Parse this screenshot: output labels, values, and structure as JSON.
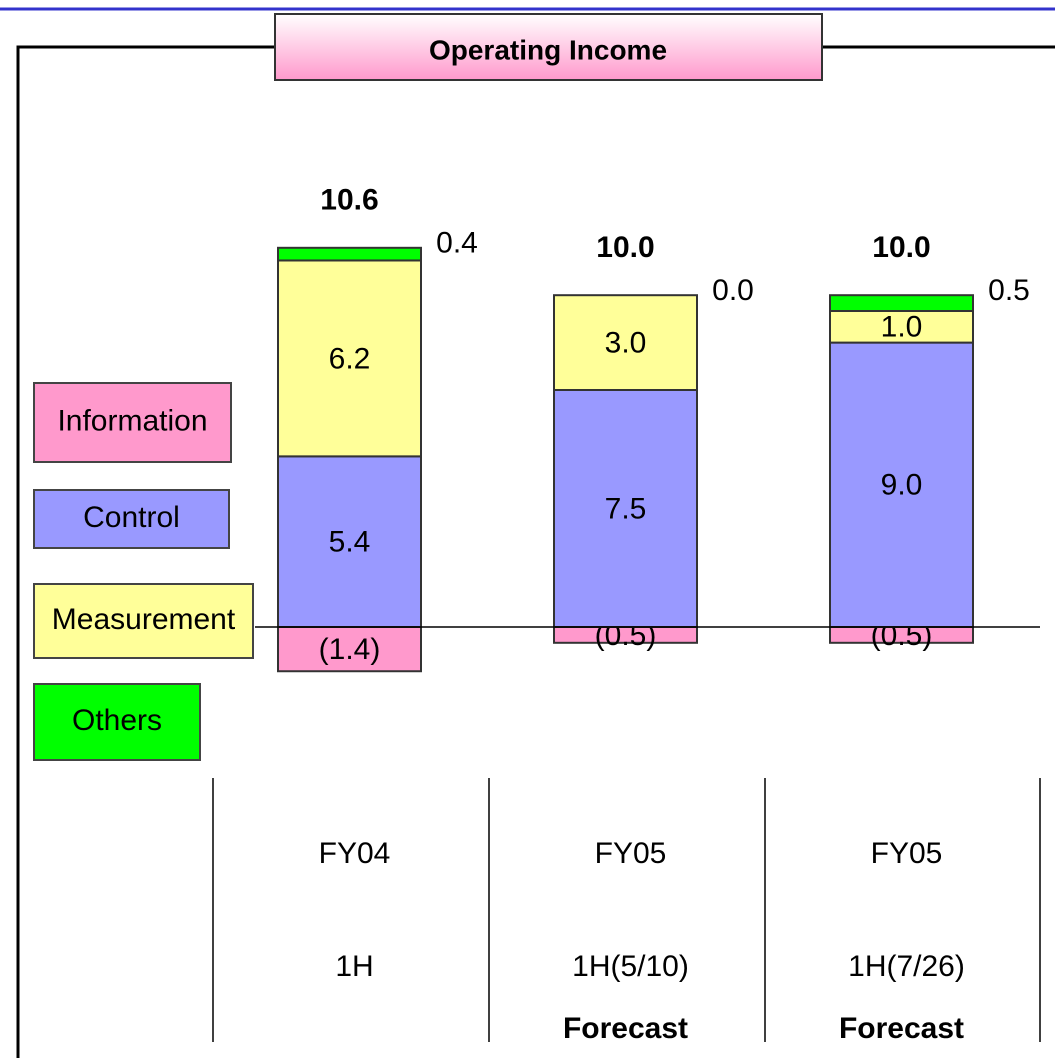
{
  "chart_data": {
    "type": "stacked_bar",
    "title": "Operating Income",
    "categories": [
      [
        "FY04",
        "1H"
      ],
      [
        "FY05",
        "1H(5/10)"
      ],
      [
        "FY05",
        "1H(7/26)"
      ]
    ],
    "notes": [
      null,
      "Forecast",
      "Forecast"
    ],
    "series": [
      {
        "name": "Information",
        "color": "#ff99cc",
        "values": [
          -1.4,
          -0.5,
          -0.5
        ],
        "value_labels": [
          "(1.4)",
          "(0.5)",
          "(0.5)"
        ]
      },
      {
        "name": "Control",
        "color": "#9999ff",
        "values": [
          5.4,
          7.5,
          9.0
        ],
        "value_labels": [
          "5.4",
          "7.5",
          "9.0"
        ]
      },
      {
        "name": "Measurement",
        "color": "#ffff99",
        "values": [
          6.2,
          3.0,
          1.0
        ],
        "value_labels": [
          "6.2",
          "3.0",
          "1.0"
        ]
      },
      {
        "name": "Others",
        "color": "#00ff00",
        "values": [
          0.4,
          0.0,
          0.5
        ],
        "value_labels": [
          "0.4",
          "0.0",
          "0.5"
        ]
      }
    ],
    "totals": [
      10.6,
      10.0,
      10.0
    ],
    "total_labels": [
      "10.6",
      "10.0",
      "10.0"
    ]
  }
}
